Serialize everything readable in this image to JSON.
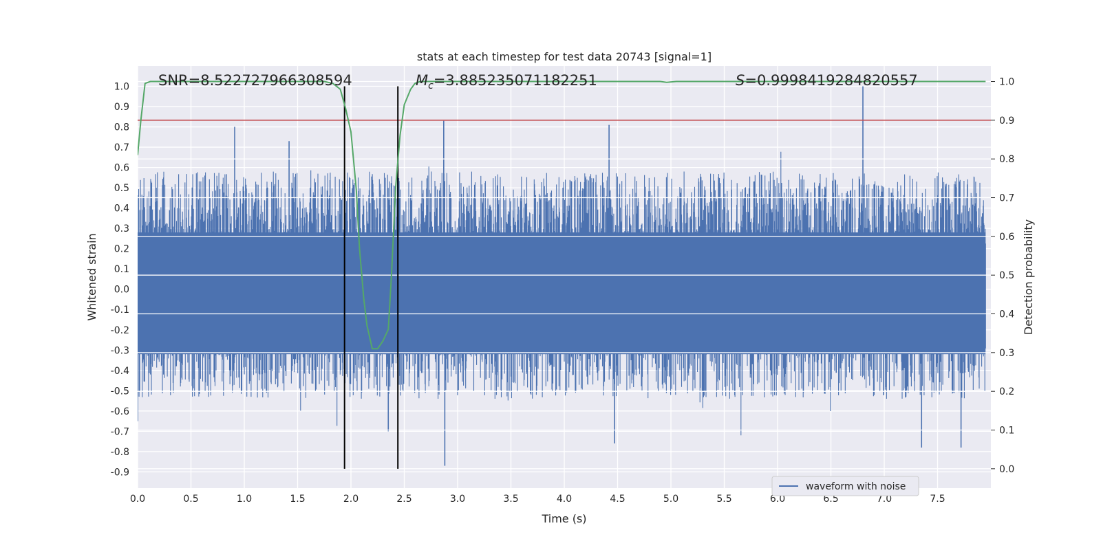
{
  "chart_data": {
    "type": "line",
    "title": "stats at each timestep for test data 20743 [signal=1]",
    "xlabel": "Time (s)",
    "ylabel": "Whitened strain",
    "y2label": "Detection probability",
    "xlim": [
      0.0,
      8.0
    ],
    "ylim": [
      -0.98,
      1.1
    ],
    "y2lim": [
      -0.05,
      1.04
    ],
    "x_ticks": [
      "0.0",
      "0.5",
      "1.0",
      "1.5",
      "2.0",
      "2.5",
      "3.0",
      "3.5",
      "4.0",
      "4.5",
      "5.0",
      "5.5",
      "6.0",
      "6.5",
      "7.0",
      "7.5"
    ],
    "y_ticks": [
      "1.0",
      "0.9",
      "0.8",
      "0.7",
      "0.6",
      "0.5",
      "0.4",
      "0.3",
      "0.2",
      "0.1",
      "0.0",
      "-0.1",
      "-0.2",
      "-0.3",
      "-0.4",
      "-0.5",
      "-0.6",
      "-0.7",
      "-0.8",
      "-0.9"
    ],
    "y2_ticks": [
      "1.0",
      "0.9",
      "0.8",
      "0.7",
      "0.6",
      "0.5",
      "0.4",
      "0.3",
      "0.2",
      "0.1",
      "0.0"
    ],
    "annotations": {
      "snr": "SNR=8.522727966308594",
      "mc": "=3.885235071182251",
      "mc_symbol": "M",
      "mc_subscript": "c",
      "s_value": "=0.9998419284820557",
      "s_symbol": "S"
    },
    "signal_window": {
      "start": 1.94,
      "end": 2.44
    },
    "threshold": 0.9,
    "series": [
      {
        "name": "waveform with noise",
        "axis": "left",
        "color": "#4c72b0",
        "envelope": {
          "typical_max": 0.43,
          "typical_min": -0.34,
          "peak_max": 1.0,
          "peak_min": -0.87
        },
        "peaks": [
          {
            "x": 0.0,
            "y": -0.65
          },
          {
            "x": 0.91,
            "y": 0.8
          },
          {
            "x": 1.42,
            "y": 0.73
          },
          {
            "x": 2.35,
            "y": -0.7
          },
          {
            "x": 2.87,
            "y": 0.83
          },
          {
            "x": 2.88,
            "y": -0.87
          },
          {
            "x": 4.42,
            "y": 0.81
          },
          {
            "x": 4.47,
            "y": -0.76
          },
          {
            "x": 6.8,
            "y": 1.0
          },
          {
            "x": 7.35,
            "y": -0.78
          },
          {
            "x": 7.72,
            "y": -0.78
          }
        ]
      },
      {
        "name": "detection probability",
        "axis": "right",
        "color": "#55a868",
        "x": [
          0.0,
          0.03,
          0.07,
          0.12,
          0.2,
          0.5,
          1.0,
          1.5,
          1.75,
          1.83,
          1.9,
          1.95,
          2.0,
          2.05,
          2.08,
          2.12,
          2.15,
          2.2,
          2.25,
          2.3,
          2.35,
          2.38,
          2.42,
          2.46,
          2.5,
          2.56,
          2.6,
          2.65,
          2.7,
          3.0,
          3.5,
          4.0,
          4.5,
          4.9,
          4.96,
          5.05,
          5.5,
          6.0,
          6.5,
          7.0,
          7.5,
          7.95
        ],
        "values": [
          0.81,
          0.9,
          0.995,
          1.0,
          1.0,
          1.0,
          1.0,
          1.0,
          1.0,
          0.995,
          0.98,
          0.93,
          0.87,
          0.72,
          0.57,
          0.44,
          0.37,
          0.31,
          0.31,
          0.33,
          0.36,
          0.5,
          0.73,
          0.86,
          0.94,
          0.98,
          0.995,
          1.0,
          1.0,
          1.0,
          1.0,
          1.0,
          1.0,
          1.0,
          0.998,
          1.0,
          1.0,
          1.0,
          1.0,
          1.0,
          1.0,
          1.0
        ]
      },
      {
        "name": "threshold",
        "axis": "right",
        "color": "#c44e52",
        "values": [
          0.9,
          0.9
        ]
      }
    ],
    "legend": {
      "position": "bottom-right",
      "entries": [
        "waveform with noise"
      ]
    }
  }
}
